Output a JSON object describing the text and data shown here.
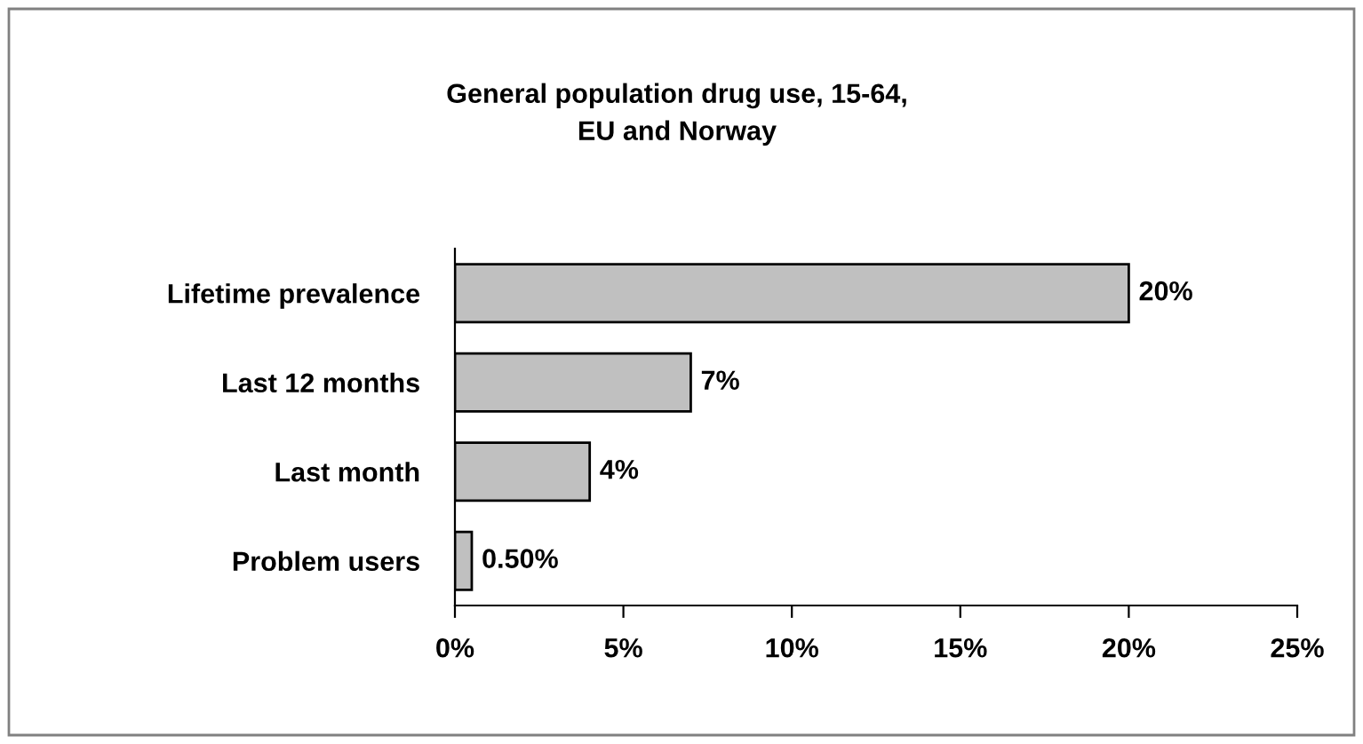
{
  "chart_data": {
    "type": "bar",
    "orientation": "horizontal",
    "title": "General population drug use, 15-64,\nEU and Norway",
    "categories": [
      "Lifetime prevalence",
      "Last 12 months",
      "Last month",
      "Problem users"
    ],
    "values": [
      20,
      7,
      4,
      0.5
    ],
    "value_labels": [
      "20%",
      "7%",
      "4%",
      "0.50%"
    ],
    "color": "#c0c0c0",
    "xlim": [
      0,
      25
    ],
    "xticks": [
      {
        "value": 0,
        "label": "0%"
      },
      {
        "value": 5,
        "label": "5%"
      },
      {
        "value": 10,
        "label": "10%"
      },
      {
        "value": 15,
        "label": "15%"
      },
      {
        "value": 20,
        "label": "20%"
      },
      {
        "value": 25,
        "label": "25%"
      }
    ],
    "grid": false
  }
}
